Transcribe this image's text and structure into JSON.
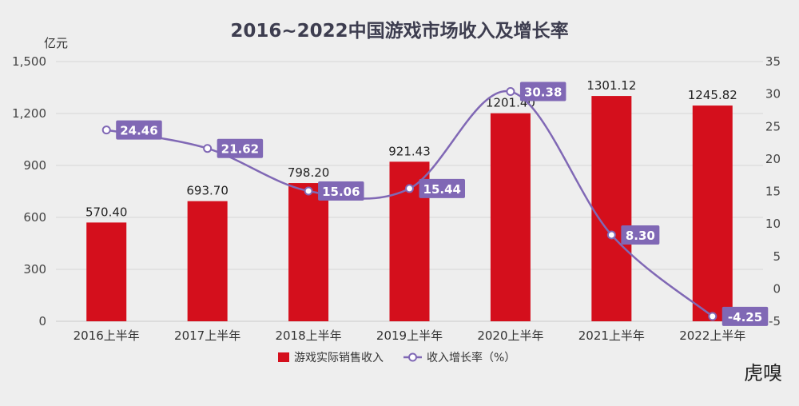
{
  "chart_data": {
    "type": "bar",
    "title": "2016~2022中国游戏市场收入及增长率",
    "left_unit": "亿元",
    "categories": [
      "2016上半年",
      "2017上半年",
      "2018上半年",
      "2019上半年",
      "2020上半年",
      "2021上半年",
      "2022上半年"
    ],
    "series": [
      {
        "name": "游戏实际销售收入",
        "type": "bar",
        "axis": "left",
        "color": "#d40f1c",
        "values": [
          570.4,
          693.7,
          798.2,
          921.43,
          1201.4,
          1301.12,
          1245.82
        ],
        "labels": [
          "570.40",
          "693.70",
          "798.20",
          "921.43",
          "1201.40",
          "1301.12",
          "1245.82"
        ]
      },
      {
        "name": "收入增长率（%）",
        "type": "line",
        "axis": "right",
        "color": "#8068b5",
        "values": [
          24.46,
          21.62,
          15.06,
          15.44,
          30.38,
          8.3,
          -4.25
        ],
        "labels": [
          "24.46",
          "21.62",
          "15.06",
          "15.44",
          "30.38",
          "8.30",
          "-4.25"
        ]
      }
    ],
    "left_axis": {
      "min": 0,
      "max": 1500,
      "ticks": [
        "0",
        "300",
        "600",
        "900",
        "1,200",
        "1,500"
      ]
    },
    "right_axis": {
      "min": -5,
      "max": 35,
      "ticks": [
        "-5",
        "0",
        "5",
        "10",
        "15",
        "20",
        "25",
        "30",
        "35"
      ]
    },
    "grid": true,
    "legend_position": "bottom"
  },
  "watermark": "虎嗅"
}
